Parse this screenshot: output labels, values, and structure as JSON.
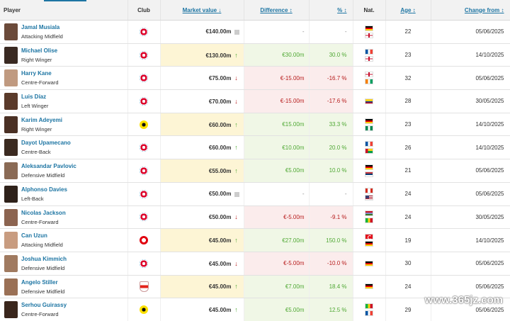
{
  "headers": {
    "player": "Player",
    "club": "Club",
    "market_value": "Market value",
    "market_value_sort_icon": "↓",
    "difference": "Difference",
    "difference_sort_icon": "↕",
    "percent": "%",
    "percent_sort_icon": "↕",
    "nat": "Nat.",
    "age": "Age",
    "age_sort_icon": "↕",
    "change_from": "Change from",
    "change_from_sort_icon": "↕"
  },
  "rows": [
    {
      "name": "Jamal Musiala",
      "position": "Attacking Midfield",
      "club": "fcb",
      "value": "€140.00m",
      "trend": "same",
      "difference": "-",
      "percent": "-",
      "nats": [
        "de",
        "en"
      ],
      "age": "22",
      "date": "05/06/2025"
    },
    {
      "name": "Michael Olise",
      "position": "Right Winger",
      "club": "fcb",
      "value": "€130.00m",
      "trend": "up",
      "difference": "€30.00m",
      "percent": "30.0 %",
      "nats": [
        "fr",
        "en"
      ],
      "age": "23",
      "date": "14/10/2025"
    },
    {
      "name": "Harry Kane",
      "position": "Centre-Forward",
      "club": "fcb",
      "value": "€75.00m",
      "trend": "down",
      "difference": "€-15.00m",
      "percent": "-16.7 %",
      "nats": [
        "en",
        "ie"
      ],
      "age": "32",
      "date": "05/06/2025"
    },
    {
      "name": "Luis Díaz",
      "position": "Left Winger",
      "club": "fcb",
      "value": "€70.00m",
      "trend": "down",
      "difference": "€-15.00m",
      "percent": "-17.6 %",
      "nats": [
        "co"
      ],
      "age": "28",
      "date": "30/05/2025"
    },
    {
      "name": "Karim Adeyemi",
      "position": "Right Winger",
      "club": "bvb",
      "value": "€60.00m",
      "trend": "up",
      "difference": "€15.00m",
      "percent": "33.3 %",
      "nats": [
        "de",
        "ng"
      ],
      "age": "23",
      "date": "14/10/2025"
    },
    {
      "name": "Dayot Upamecano",
      "position": "Centre-Back",
      "club": "fcb",
      "value": "€60.00m",
      "trend": "up",
      "difference": "€10.00m",
      "percent": "20.0 %",
      "nats": [
        "fr",
        "gw"
      ],
      "age": "26",
      "date": "14/10/2025"
    },
    {
      "name": "Aleksandar Pavlovic",
      "position": "Defensive Midfield",
      "club": "fcb",
      "value": "€55.00m",
      "trend": "up",
      "difference": "€5.00m",
      "percent": "10.0 %",
      "nats": [
        "de",
        "rs"
      ],
      "age": "21",
      "date": "05/06/2025"
    },
    {
      "name": "Alphonso Davies",
      "position": "Left-Back",
      "club": "fcb",
      "value": "€50.00m",
      "trend": "same",
      "difference": "-",
      "percent": "-",
      "nats": [
        "ca",
        "us"
      ],
      "age": "24",
      "date": "05/06/2025"
    },
    {
      "name": "Nicolas Jackson",
      "position": "Centre-Forward",
      "club": "fcb",
      "value": "€50.00m",
      "trend": "down",
      "difference": "€-5.00m",
      "percent": "-9.1 %",
      "nats": [
        "gm",
        "sn"
      ],
      "age": "24",
      "date": "30/05/2025"
    },
    {
      "name": "Can Uzun",
      "position": "Attacking Midfield",
      "club": "sge",
      "value": "€45.00m",
      "trend": "up",
      "difference": "€27.00m",
      "percent": "150.0 %",
      "nats": [
        "tr",
        "de"
      ],
      "age": "19",
      "date": "14/10/2025"
    },
    {
      "name": "Joshua Kimmich",
      "position": "Defensive Midfield",
      "club": "fcb",
      "value": "€45.00m",
      "trend": "down",
      "difference": "€-5.00m",
      "percent": "-10.0 %",
      "nats": [
        "de"
      ],
      "age": "30",
      "date": "05/06/2025"
    },
    {
      "name": "Angelo Stiller",
      "position": "Defensive Midfield",
      "club": "vfb",
      "value": "€45.00m",
      "trend": "up",
      "difference": "€7.00m",
      "percent": "18.4 %",
      "nats": [
        "de"
      ],
      "age": "24",
      "date": "05/06/2025"
    },
    {
      "name": "Serhou Guirassy",
      "position": "Centre-Forward",
      "club": "bvb",
      "value": "€45.00m",
      "trend": "up",
      "difference": "€5.00m",
      "percent": "12.5 %",
      "nats": [
        "ml",
        "fr"
      ],
      "age": "29",
      "date": "05/06/2025"
    }
  ],
  "highlight_rows": [
    1,
    4,
    6,
    9,
    11
  ],
  "photo_colors": [
    "#6b4a3a",
    "#3a2a22",
    "#c09a80",
    "#5a3a2a",
    "#4a3024",
    "#3b2a20",
    "#8a6a55",
    "#2e211a",
    "#8c6450",
    "#c89c80",
    "#a07a60",
    "#9a7055",
    "#3a261c"
  ],
  "watermark": "www.365jz.com"
}
